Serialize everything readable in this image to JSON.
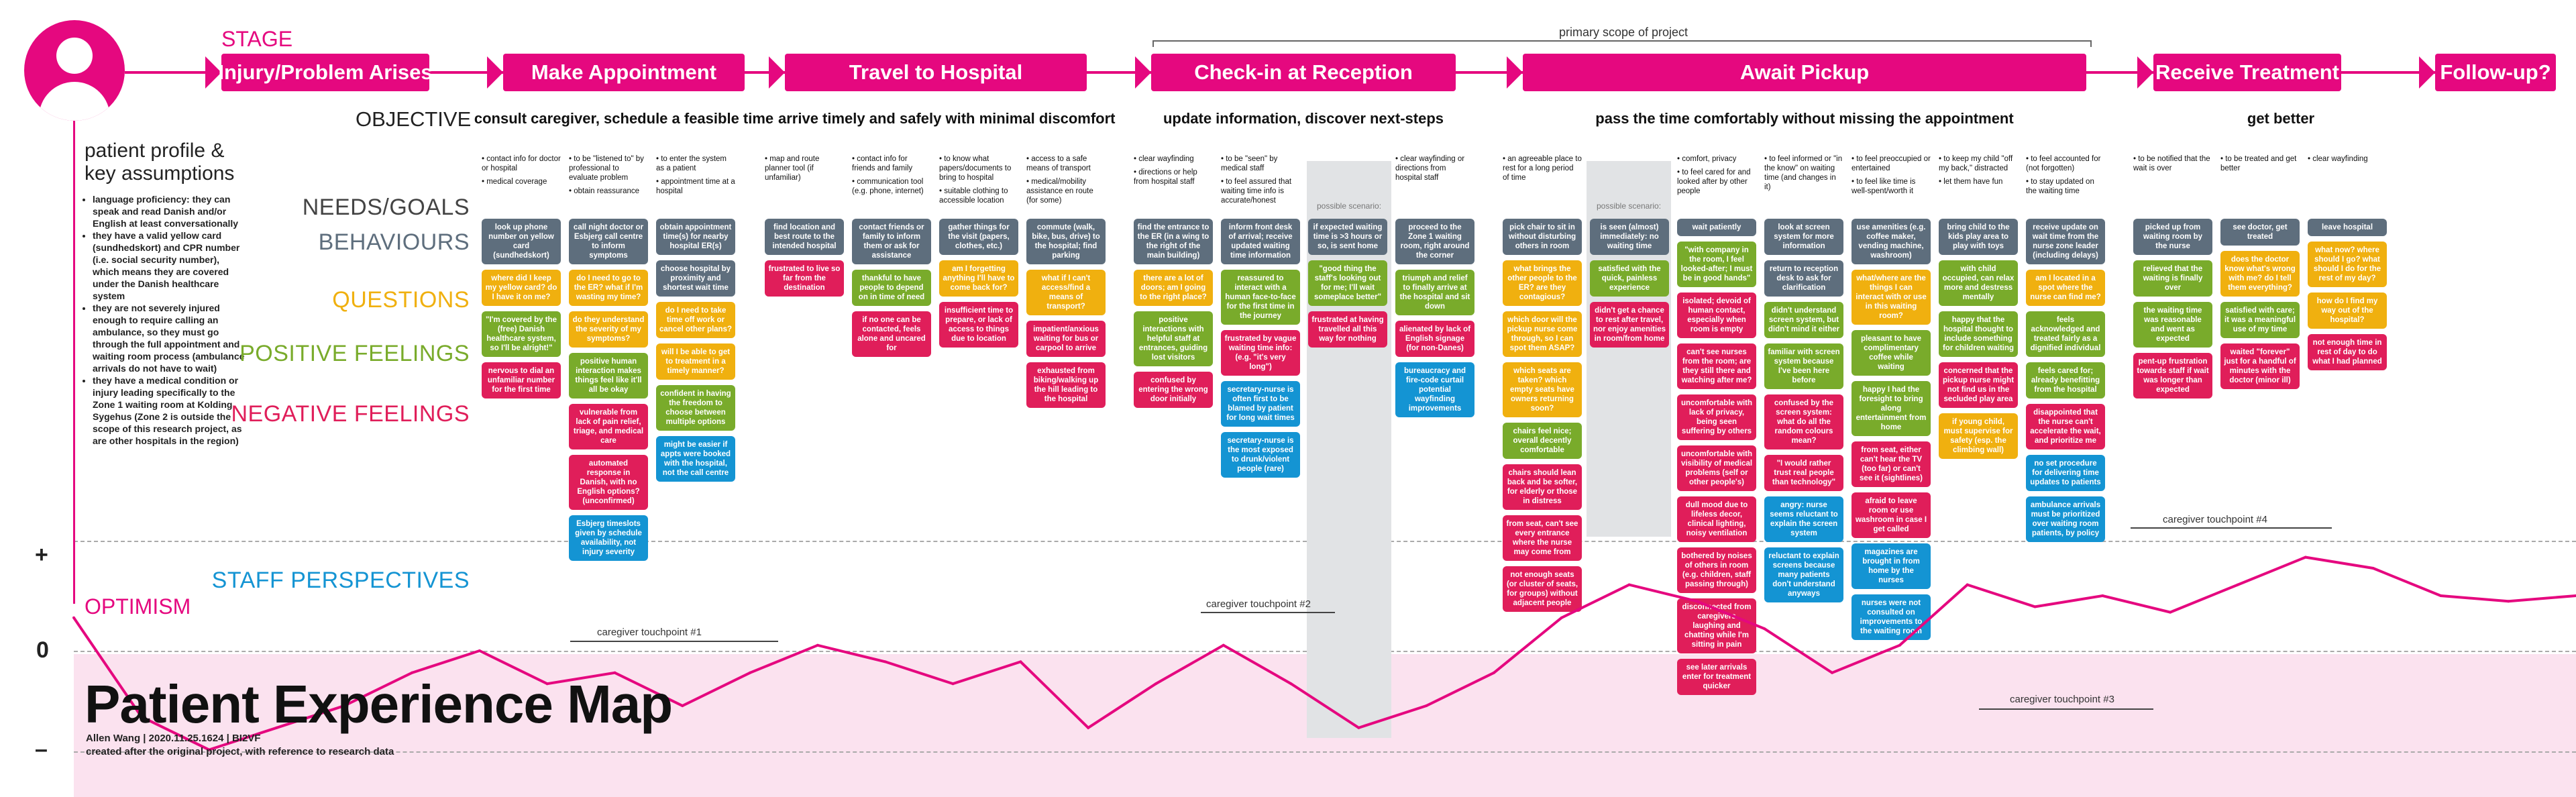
{
  "colors": {
    "magenta": "#e5087f",
    "behaviour": "#5e6e7d",
    "question": "#f0b00f",
    "positive": "#79ab2b",
    "negative": "#e01e5a",
    "staff": "#1494d3"
  },
  "header": {
    "stage_label": "STAGE",
    "objective_label": "OBJECTIVE",
    "primary_scope": "primary scope of project"
  },
  "stages": [
    {
      "label": "Injury/Problem Arises"
    },
    {
      "label": "Make Appointment"
    },
    {
      "label": "Travel to Hospital"
    },
    {
      "label": "Check-in at Reception"
    },
    {
      "label": "Await Pickup"
    },
    {
      "label": "Receive Treatment"
    },
    {
      "label": "Follow-up?"
    }
  ],
  "objectives": [
    "consult caregiver, schedule a feasible time",
    "arrive timely and safely with minimal discomfort",
    "update information, discover next-steps",
    "pass the time comfortably without missing the appointment",
    "get better"
  ],
  "row_labels": {
    "needs": "NEEDS/GOALS",
    "behaviours": "BEHAVIOURS",
    "questions": "QUESTIONS",
    "positive": "POSITIVE FEELINGS",
    "negative": "NEGATIVE FEELINGS",
    "staff": "STAFF PERSPECTIVES",
    "optimism": "OPTIMISM"
  },
  "profile": {
    "title": "patient profile & key assumptions",
    "items": [
      "language proficiency: they can speak and read Danish and/or English at least conversationally",
      "they have a valid yellow card (sundhedskort) and CPR number (i.e. social security number), which means they are covered under the Danish healthcare system",
      "they are not severely injured enough to require calling an ambulance, so they must go through the full appointment and waiting room process (ambulance arrivals do not have to wait)",
      "they have a medical condition or injury leading specifically to the Zone 1 waiting room at Kolding Sygehus (Zone 2 is outside the scope of this research project, as are other hospitals in the region)"
    ]
  },
  "scale": {
    "plus": "+",
    "zero": "0",
    "minus": "–"
  },
  "touchpoints": [
    "caregiver touchpoint #1",
    "caregiver touchpoint #2",
    "caregiver touchpoint #3",
    "caregiver touchpoint #4"
  ],
  "possible_scenario": "possible scenario:",
  "title": {
    "main": "Patient Experience Map",
    "byline": "Allen Wang | 2020.11.25.1624 | BI2VF",
    "note": "created after the original project, with reference to research data"
  },
  "columns": [
    {
      "needs": [
        "contact info for doctor or hospital",
        "medical coverage"
      ],
      "cards": [
        {
          "t": "beh",
          "x": "look up phone number on yellow card (sundhedskort)"
        },
        {
          "t": "q",
          "x": "where did I keep my yellow card? do I have it on me?"
        },
        {
          "t": "pos",
          "x": "\"I'm covered by the (free) Danish healthcare system, so I'll be alright!\""
        },
        {
          "t": "neg",
          "x": "nervous to dial an unfamiliar number for the first time"
        }
      ]
    },
    {
      "needs": [
        "to be \"listened to\" by professional to evaluate problem",
        "obtain reassurance"
      ],
      "cards": [
        {
          "t": "beh",
          "x": "call night doctor or Esbjerg call centre to inform symptoms"
        },
        {
          "t": "q",
          "x": "do I need to go to the ER? what if I'm wasting my time?"
        },
        {
          "t": "q",
          "x": "do they understand the severity of my symptoms?"
        },
        {
          "t": "pos",
          "x": "positive human interaction makes things feel like it'll all be okay"
        },
        {
          "t": "neg",
          "x": "vulnerable from lack of pain relief, triage, and medical care"
        },
        {
          "t": "neg",
          "x": "automated response in Danish, with no English options? (unconfirmed)"
        },
        {
          "t": "staff",
          "x": "Esbjerg timeslots given by schedule availability, not injury severity"
        }
      ]
    },
    {
      "needs": [
        "to enter the system as a patient",
        "appointment time at a hospital"
      ],
      "cards": [
        {
          "t": "beh",
          "x": "obtain appointment time(s) for nearby hospital ER(s)"
        },
        {
          "t": "beh",
          "x": "choose hospital by proximity and shortest wait time"
        },
        {
          "t": "q",
          "x": "do I need to take time off work or cancel other plans?"
        },
        {
          "t": "q",
          "x": "will I be able to get to treatment in a timely manner?"
        },
        {
          "t": "pos",
          "x": "confident in having the freedom to choose between multiple options"
        },
        {
          "t": "staff",
          "x": "might be easier if appts were booked with the hospital, not the call centre"
        }
      ]
    },
    {
      "needs": [
        "map and route planner tool (if unfamiliar)"
      ],
      "cards": [
        {
          "t": "beh",
          "x": "find location and best route to the intended hospital"
        },
        {
          "t": "neg",
          "x": "frustrated to live so far from the destination"
        }
      ]
    },
    {
      "needs": [
        "contact info for friends and family",
        "communication tool (e.g. phone, internet)"
      ],
      "cards": [
        {
          "t": "beh",
          "x": "contact friends or family to inform them or ask for assistance"
        },
        {
          "t": "pos",
          "x": "thankful to have people to depend on in time of need"
        },
        {
          "t": "neg",
          "x": "if no one can be contacted, feels alone and uncared for"
        }
      ]
    },
    {
      "needs": [
        "to know what papers/documents to bring to hospital",
        "suitable clothing to accessible location"
      ],
      "cards": [
        {
          "t": "beh",
          "x": "gather things for the visit (papers, clothes, etc.)"
        },
        {
          "t": "q",
          "x": "am I forgetting anything I'll have to come back for?"
        },
        {
          "t": "neg",
          "x": "insufficient time to prepare, or lack of access to things due to location"
        }
      ]
    },
    {
      "needs": [
        "access to a safe means of transport",
        "medical/mobility assistance en route (for some)"
      ],
      "cards": [
        {
          "t": "beh",
          "x": "commute (walk, bike, bus, drive) to the hospital; find parking"
        },
        {
          "t": "q",
          "x": "what if I can't access/find a means of transport?"
        },
        {
          "t": "neg",
          "x": "impatient/anxious waiting for bus or carpool to arrive"
        },
        {
          "t": "neg",
          "x": "exhausted from biking/walking up the hill leading to the hospital"
        }
      ]
    },
    {
      "needs": [
        "clear wayfinding",
        "directions or help from hospital staff"
      ],
      "cards": [
        {
          "t": "beh",
          "x": "find the entrance to the ER (in a wing to the right of the main building)"
        },
        {
          "t": "q",
          "x": "there are a lot of doors; am I going to the right place?"
        },
        {
          "t": "pos",
          "x": "positive interactions with helpful staff at entrances, guiding lost visitors"
        },
        {
          "t": "neg",
          "x": "confused by entering the wrong door initially"
        }
      ]
    },
    {
      "needs": [
        "to be \"seen\" by medical staff",
        "to feel assured that waiting time info is accurate/honest"
      ],
      "cards": [
        {
          "t": "beh",
          "x": "inform front desk of arrival; receive updated waiting time information"
        },
        {
          "t": "pos",
          "x": "reassured to interact with a human face-to-face for the first time in the journey"
        },
        {
          "t": "neg",
          "x": "frustrated by vague waiting time info: (e.g. \"it's very long\")"
        },
        {
          "t": "staff",
          "x": "secretary-nurse is often first to be blamed by patient for long wait times"
        },
        {
          "t": "staff",
          "x": "secretary-nurse is the most exposed to drunk/violent people (rare)"
        }
      ]
    },
    {
      "needs": [],
      "scenario": true,
      "cards": [
        {
          "t": "beh",
          "x": "if expected waiting time is >3 hours or so, is sent home"
        },
        {
          "t": "pos",
          "x": "\"good thing the staff's looking out for me; I'll wait someplace better\""
        },
        {
          "t": "neg",
          "x": "frustrated at having travelled all this way for nothing"
        }
      ]
    },
    {
      "needs": [
        "clear wayfinding or directions from hospital staff"
      ],
      "cards": [
        {
          "t": "beh",
          "x": "proceed to the Zone 1 waiting room, right around the corner"
        },
        {
          "t": "pos",
          "x": "triumph and relief to finally arrive at the hospital and sit down"
        },
        {
          "t": "neg",
          "x": "alienated by lack of English signage (for non-Danes)"
        },
        {
          "t": "staff",
          "x": "bureaucracy and fire-code curtail potential wayfinding improvements"
        }
      ]
    },
    {
      "needs": [
        "an agreeable place to rest for a long period of time"
      ],
      "cards": [
        {
          "t": "beh",
          "x": "pick chair to sit in without disturbing others in room"
        },
        {
          "t": "q",
          "x": "what brings the other people to the ER? are they contagious?"
        },
        {
          "t": "q",
          "x": "which door will the pickup nurse come through, so I can spot them ASAP?"
        },
        {
          "t": "q",
          "x": "which seats are taken? which empty seats have owners returning soon?"
        },
        {
          "t": "pos",
          "x": "chairs feel nice; overall decently comfortable"
        },
        {
          "t": "neg",
          "x": "chairs should lean back and be softer, for elderly or those in distress"
        },
        {
          "t": "neg",
          "x": "from seat, can't see every entrance where the nurse may come from"
        },
        {
          "t": "neg",
          "x": "not enough seats (or cluster of seats, for groups) without adjacent people"
        }
      ]
    },
    {
      "needs": [],
      "scenario": true,
      "cards": [
        {
          "t": "beh",
          "x": "is seen (almost) immediately: no waiting time"
        },
        {
          "t": "pos",
          "x": "satisfied with the quick, painless experience"
        },
        {
          "t": "neg",
          "x": "didn't get a chance to rest after travel, nor enjoy amenities in room/from home"
        }
      ]
    },
    {
      "needs": [
        "comfort, privacy",
        "to feel cared for and looked after by other people"
      ],
      "cards": [
        {
          "t": "beh",
          "x": "wait patiently"
        },
        {
          "t": "pos",
          "x": "\"with company in the room, I feel looked-after; I must be in good hands\""
        },
        {
          "t": "neg",
          "x": "isolated; devoid of human contact, especially when room is empty"
        },
        {
          "t": "neg",
          "x": "can't see nurses from the room; are they still there and watching after me?"
        },
        {
          "t": "neg",
          "x": "uncomfortable with lack of privacy, being seen suffering by others"
        },
        {
          "t": "neg",
          "x": "uncomfortable with visibility of medical problems (self or other people's)"
        },
        {
          "t": "neg",
          "x": "dull mood due to lifeless decor, clinical lighting, noisy ventilation"
        },
        {
          "t": "neg",
          "x": "bothered by noises of others in room (e.g. children, staff passing through)"
        },
        {
          "t": "neg",
          "x": "disconnected from caregivers laughing and chatting while I'm sitting in pain"
        },
        {
          "t": "neg",
          "x": "see later arrivals enter for treatment quicker"
        }
      ]
    },
    {
      "needs": [
        "to feel informed or \"in the know\" on waiting time (and changes in it)"
      ],
      "cards": [
        {
          "t": "beh",
          "x": "look at screen system for more information"
        },
        {
          "t": "beh",
          "x": "return to reception desk to ask for clarification"
        },
        {
          "t": "pos",
          "x": "didn't understand screen system, but didn't mind it either"
        },
        {
          "t": "pos",
          "x": "familiar with screen system because I've been here before"
        },
        {
          "t": "neg",
          "x": "confused by the screen system: what do all the random colours mean?"
        },
        {
          "t": "neg",
          "x": "\"I would rather trust real people than technology\""
        },
        {
          "t": "staff",
          "x": "angry: nurse seems reluctant to explain the screen system"
        },
        {
          "t": "staff",
          "x": "reluctant to explain screens because many patients don't understand anyways"
        }
      ]
    },
    {
      "needs": [
        "to feel preoccupied or entertained",
        "to feel like time is well-spent/worth it"
      ],
      "cards": [
        {
          "t": "beh",
          "x": "use amenities (e.g. coffee maker, vending machine, washroom)"
        },
        {
          "t": "q",
          "x": "what/where are the things I can interact with or use in this waiting room?"
        },
        {
          "t": "pos",
          "x": "pleasant to have complimentary coffee while waiting"
        },
        {
          "t": "pos",
          "x": "happy I had the foresight to bring along entertainment from home"
        },
        {
          "t": "neg",
          "x": "from seat, either can't hear the TV (too far) or can't see it (sightlines)"
        },
        {
          "t": "neg",
          "x": "afraid to leave room or use washroom in case I get called"
        },
        {
          "t": "staff",
          "x": "magazines are brought in from home by the nurses"
        },
        {
          "t": "staff",
          "x": "nurses were not consulted on improvements to the waiting room"
        }
      ]
    },
    {
      "needs": [
        "to keep my child \"off my back,\" distracted",
        "let them have fun"
      ],
      "cards": [
        {
          "t": "beh",
          "x": "bring child to the kids play area to play with toys"
        },
        {
          "t": "pos",
          "x": "with child occupied, can relax more and destress mentally"
        },
        {
          "t": "pos",
          "x": "happy that the hospital thought to include something for children waiting"
        },
        {
          "t": "neg",
          "x": "concerned that the pickup nurse might not find us in the secluded play area"
        },
        {
          "t": "q",
          "x": "if young child, must supervise for safety (esp. the climbing wall)"
        }
      ]
    },
    {
      "needs": [
        "to feel accounted for (not forgotten)",
        "to stay updated on the waiting time"
      ],
      "cards": [
        {
          "t": "beh",
          "x": "receive update on wait time from the nurse zone leader (including delays)"
        },
        {
          "t": "q",
          "x": "am I located in a spot where the nurse can find me?"
        },
        {
          "t": "pos",
          "x": "feels acknowledged and treated fairly as a dignified individual"
        },
        {
          "t": "pos",
          "x": "feels cared for; already benefitting from the hospital"
        },
        {
          "t": "neg",
          "x": "disappointed that the nurse can't accelerate the wait, and prioritize me"
        },
        {
          "t": "staff",
          "x": "no set procedure for delivering time updates to patients"
        },
        {
          "t": "staff",
          "x": "ambulance arrivals must be prioritized over waiting room patients, by policy"
        }
      ]
    },
    {
      "needs": [
        "to be notified that the wait is over"
      ],
      "cards": [
        {
          "t": "beh",
          "x": "picked up from waiting room by the nurse"
        },
        {
          "t": "pos",
          "x": "relieved that the waiting is finally over"
        },
        {
          "t": "pos",
          "x": "the waiting time was reasonable and went as expected"
        },
        {
          "t": "neg",
          "x": "pent-up frustration towards staff if wait was longer than expected"
        }
      ]
    },
    {
      "needs": [
        "to be treated and get better"
      ],
      "cards": [
        {
          "t": "beh",
          "x": "see doctor, get treated"
        },
        {
          "t": "q",
          "x": "does the doctor know what's wrong with me? do I tell them everything?"
        },
        {
          "t": "pos",
          "x": "satisfied with care; it was a meaningful use of my time"
        },
        {
          "t": "neg",
          "x": "waited \"forever\" just for a handful of minutes with the doctor (minor ill)"
        }
      ]
    },
    {
      "needs": [
        "clear wayfinding"
      ],
      "cards": [
        {
          "t": "beh",
          "x": "leave hospital"
        },
        {
          "t": "q",
          "x": "what now? where should I go? what should I do for the rest of my day?"
        },
        {
          "t": "q",
          "x": "how do I find my way out of the hospital?"
        },
        {
          "t": "neg",
          "x": "not enough time in rest of day to do what I had planned"
        }
      ]
    }
  ],
  "chart_data": {
    "type": "line",
    "title": "",
    "ylabel": "OPTIMISM",
    "ylim": [
      -1,
      1
    ],
    "series": [
      {
        "values": [
          0.3,
          -0.6,
          -0.9,
          -0.7,
          -0.5,
          -0.2,
          0,
          -0.3,
          -0.2,
          -0.5,
          -0.2,
          0.05,
          -0.1,
          -0.3,
          -0.1,
          -0.7,
          -0.3,
          0.05,
          -0.3,
          -0.7,
          -0.5,
          -0.2,
          0.3,
          0.6,
          0.45,
          0.2,
          -0.2,
          0.05,
          0.6,
          0.4,
          0.5,
          0.35,
          0.6,
          0.85,
          0.75,
          0.5,
          0.45,
          0.5
        ]
      }
    ]
  }
}
